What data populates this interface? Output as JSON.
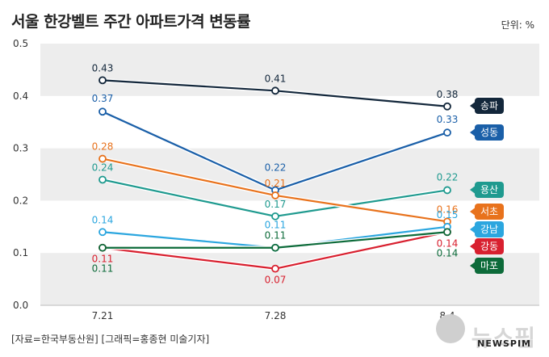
{
  "header": {
    "title": "서울 한강벨트 주간 아파트가격 변동률",
    "unit": "단위: %"
  },
  "footer": {
    "source": "[자료=한국부동산원] [그래픽=홍종현 미술기자]",
    "logo_text": "뉴스핌",
    "logo_sub": "NEWSPIM"
  },
  "chart_data": {
    "type": "line",
    "categories": [
      "7.21",
      "7.28",
      "8.4"
    ],
    "ylim": [
      0,
      0.5
    ],
    "yticks": [
      "0.0",
      "0.1",
      "0.2",
      "0.3",
      "0.4",
      "0.5"
    ],
    "grid": true,
    "legend": "right-end tags",
    "series": [
      {
        "name": "송파",
        "values": [
          0.43,
          0.41,
          0.38
        ],
        "labels": [
          "0.43",
          "0.41",
          "0.38"
        ],
        "color": "#13273b"
      },
      {
        "name": "성동",
        "values": [
          0.37,
          0.22,
          0.33
        ],
        "labels": [
          "0.37",
          "0.22",
          "0.33"
        ],
        "color": "#1a5fa8"
      },
      {
        "name": "용산",
        "values": [
          0.24,
          0.17,
          0.22
        ],
        "labels": [
          "0.24",
          "0.17",
          "0.22"
        ],
        "color": "#1f9a8f"
      },
      {
        "name": "서초",
        "values": [
          0.28,
          0.21,
          0.16
        ],
        "labels": [
          "0.28",
          "0.21",
          "0.16"
        ],
        "color": "#e8721c"
      },
      {
        "name": "강남",
        "values": [
          0.14,
          0.11,
          0.15
        ],
        "labels": [
          "0.14",
          "0.11",
          "0.15"
        ],
        "color": "#2ba6df"
      },
      {
        "name": "강동",
        "values": [
          0.11,
          0.07,
          0.14
        ],
        "labels": [
          "0.11",
          "0.07",
          "0.14"
        ],
        "color": "#d8202f"
      },
      {
        "name": "마포",
        "values": [
          0.11,
          0.11,
          0.14
        ],
        "labels": [
          "0.11",
          "0.11",
          "0.14"
        ],
        "color": "#0d6b3a"
      }
    ]
  }
}
